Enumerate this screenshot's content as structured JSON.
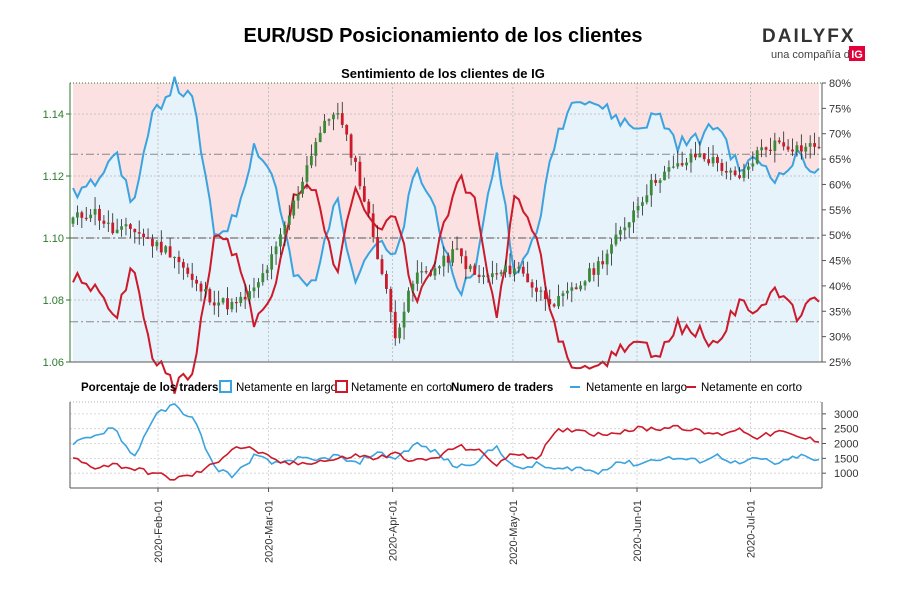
{
  "title": "EUR/USD Posicionamiento de los clientes",
  "subtitle": "Sentimiento de los clientes de IG",
  "logo": {
    "brand": "DAILYFX",
    "tagline": "una compañía de",
    "company": "IG"
  },
  "colors": {
    "long": "#3aa3e0",
    "short": "#cc1a2b",
    "long_fill": "#e6f3fb",
    "short_fill": "#fbe1e1",
    "candle_up": "#3a8a3a",
    "candle_down": "#cc1a2b",
    "price_axis": "#2d7a2d"
  },
  "legend": {
    "pct_title": "Porcentaje de los traders",
    "pct_long": "Netamente en largo",
    "pct_short": "Netamente en corto",
    "num_title": "Numero de traders",
    "num_long": "Netamente en largo",
    "num_short": "Netamente en corto"
  },
  "chart_data": {
    "type": "candlestick",
    "title": "EUR/USD Posicionamiento de los clientes",
    "subtitle": "Sentimiento de los clientes de IG",
    "x_tick_labels": [
      "2020-Feb-01",
      "2020-Mar-01",
      "2020-Apr-01",
      "2020-May-01",
      "2020-Jun-01",
      "2020-Jul-01"
    ],
    "price_axis": {
      "ticks": [
        "1.06",
        "1.08",
        "1.10",
        "1.12",
        "1.14"
      ],
      "range": [
        1.06,
        1.15
      ]
    },
    "pct_axis": {
      "ticks": [
        "25%",
        "30%",
        "35%",
        "40%",
        "45%",
        "50%",
        "55%",
        "60%",
        "65%",
        "70%",
        "75%",
        "80%"
      ],
      "range": [
        25,
        80
      ]
    },
    "count_axis": {
      "ticks": [
        "1000",
        "1500",
        "2000",
        "2500",
        "3000"
      ],
      "range": [
        500,
        3400
      ]
    },
    "price_close_keypoints": [
      1.106,
      1.109,
      1.102,
      1.103,
      1.098,
      1.095,
      1.085,
      1.08,
      1.078,
      1.083,
      1.095,
      1.112,
      1.131,
      1.142,
      1.124,
      1.098,
      1.069,
      1.088,
      1.09,
      1.096,
      1.087,
      1.088,
      1.091,
      1.083,
      1.079,
      1.084,
      1.091,
      1.1,
      1.111,
      1.12,
      1.123,
      1.127,
      1.124,
      1.118,
      1.128,
      1.131,
      1.129,
      1.13
    ],
    "long_pct_keypoints": [
      58,
      60,
      67,
      56,
      74,
      80,
      76,
      50,
      53,
      68,
      61,
      41,
      40,
      58,
      42,
      49,
      45,
      63,
      55,
      38,
      44,
      67,
      41,
      51,
      70,
      78,
      76,
      73,
      71,
      74,
      68,
      69,
      72,
      63,
      65,
      61,
      66,
      62
    ],
    "short_pct_keypoints": [
      42,
      40,
      33,
      44,
      26,
      20,
      24,
      50,
      47,
      32,
      39,
      59,
      60,
      42,
      58,
      51,
      55,
      37,
      45,
      62,
      56,
      33,
      59,
      49,
      30,
      22,
      24,
      27,
      29,
      26,
      32,
      31,
      28,
      37,
      35,
      39,
      34,
      38
    ],
    "long_count_keypoints": [
      2000,
      2200,
      2600,
      1500,
      2900,
      3300,
      2800,
      1200,
      900,
      1600,
      1300,
      1500,
      1400,
      1600,
      1300,
      1700,
      1500,
      2000,
      1700,
      1200,
      1400,
      1900,
      1100,
      1300,
      1100,
      1200,
      1000,
      1400,
      1300,
      1500,
      1500,
      1400,
      1600,
      1300,
      1500,
      1300,
      1600,
      1400
    ],
    "short_count_keypoints": [
      1500,
      1200,
      1300,
      1150,
      1000,
      800,
      950,
      1300,
      1900,
      1800,
      1400,
      1300,
      1400,
      1450,
      1600,
      1500,
      1650,
      1400,
      1500,
      1900,
      1800,
      1300,
      1700,
      1500,
      2400,
      2500,
      2300,
      2400,
      2500,
      2500,
      2600,
      2400,
      2300,
      2500,
      2200,
      2400,
      2200,
      2100
    ]
  }
}
